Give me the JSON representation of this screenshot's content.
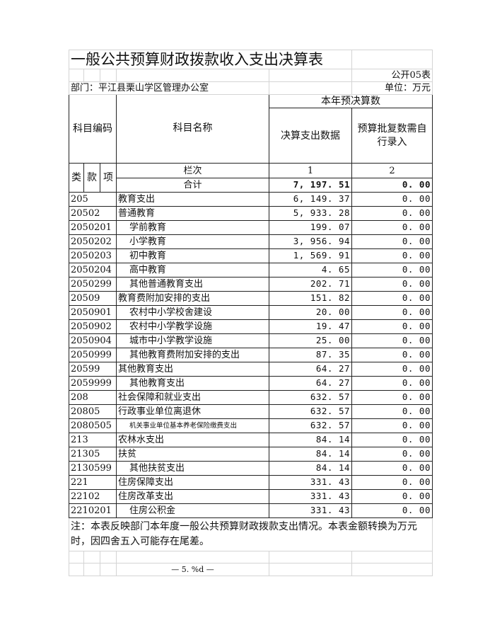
{
  "title": "一般公共预算财政拨款收入支出决算表",
  "form_no": "公开05表",
  "department": "部门：平江县栗山学区管理办公室",
  "unit": "单位：万元",
  "headers": {
    "code": "科目编码",
    "name": "科目名称",
    "group": "本年预决算数",
    "col1": "决算支出数据",
    "col2": "预算批复数需自行录入",
    "lei": "类",
    "kuan": "款",
    "xiang": "项",
    "column_no": "栏次",
    "col1_no": "1",
    "col2_no": "2",
    "total_label": "合计",
    "total1": "7, 197. 51",
    "total2": "0. 00"
  },
  "rows": [
    {
      "code": "205",
      "name": "教育支出",
      "v1": "6, 149. 37",
      "v2": "0. 00",
      "level": 1
    },
    {
      "code": "20502",
      "name": "普通教育",
      "v1": "5, 933. 28",
      "v2": "0. 00",
      "level": 1
    },
    {
      "code": "2050201",
      "name": "学前教育",
      "v1": "199. 07",
      "v2": "0. 00",
      "level": 2
    },
    {
      "code": "2050202",
      "name": "小学教育",
      "v1": "3, 956. 94",
      "v2": "0. 00",
      "level": 2
    },
    {
      "code": "2050203",
      "name": "初中教育",
      "v1": "1, 569. 91",
      "v2": "0. 00",
      "level": 2
    },
    {
      "code": "2050204",
      "name": "高中教育",
      "v1": "4. 65",
      "v2": "0. 00",
      "level": 2
    },
    {
      "code": "2050299",
      "name": "其他普通教育支出",
      "v1": "202. 71",
      "v2": "0. 00",
      "level": 2
    },
    {
      "code": "20509",
      "name": "教育费附加安排的支出",
      "v1": "151. 82",
      "v2": "0. 00",
      "level": 1
    },
    {
      "code": "2050901",
      "name": "农村中小学校舍建设",
      "v1": "20. 00",
      "v2": "0. 00",
      "level": 2
    },
    {
      "code": "2050902",
      "name": "农村中小学教学设施",
      "v1": "19. 47",
      "v2": "0. 00",
      "level": 2
    },
    {
      "code": "2050904",
      "name": "城市中小学教学设施",
      "v1": "25. 00",
      "v2": "0. 00",
      "level": 2
    },
    {
      "code": "2050999",
      "name": "其他教育费附加安排的支出",
      "v1": "87. 35",
      "v2": "0. 00",
      "level": 2
    },
    {
      "code": "20599",
      "name": "其他教育支出",
      "v1": "64. 27",
      "v2": "0. 00",
      "level": 1
    },
    {
      "code": "2059999",
      "name": "其他教育支出",
      "v1": "64. 27",
      "v2": "0. 00",
      "level": 2
    },
    {
      "code": "208",
      "name": "社会保障和就业支出",
      "v1": "632. 57",
      "v2": "0. 00",
      "level": 1
    },
    {
      "code": "20805",
      "name": "行政事业单位离退休",
      "v1": "632. 57",
      "v2": "0. 00",
      "level": 1
    },
    {
      "code": "2080505",
      "name": "机关事业单位基本养老保险缴费支出",
      "v1": "632. 57",
      "v2": "0. 00",
      "level": 2,
      "small": true
    },
    {
      "code": "213",
      "name": "农林水支出",
      "v1": "84. 14",
      "v2": "0. 00",
      "level": 1
    },
    {
      "code": "21305",
      "name": "扶贫",
      "v1": "84. 14",
      "v2": "0. 00",
      "level": 1
    },
    {
      "code": "2130599",
      "name": "其他扶贫支出",
      "v1": "84. 14",
      "v2": "0. 00",
      "level": 2
    },
    {
      "code": "221",
      "name": "住房保障支出",
      "v1": "331. 43",
      "v2": "0. 00",
      "level": 1
    },
    {
      "code": "22102",
      "name": "住房改革支出",
      "v1": "331. 43",
      "v2": "0. 00",
      "level": 1
    },
    {
      "code": "2210201",
      "name": "住房公积金",
      "v1": "331. 43",
      "v2": "0. 00",
      "level": 2
    }
  ],
  "note": "注：本表反映部门本年度一般公共预算财政拨款支出情况。本表金额转换为万元时，因四舍五入可能存在尾差。",
  "page_footer": "— 5. %d —"
}
